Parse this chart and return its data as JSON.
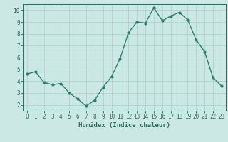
{
  "x": [
    0,
    1,
    2,
    3,
    4,
    5,
    6,
    7,
    8,
    9,
    10,
    11,
    12,
    13,
    14,
    15,
    16,
    17,
    18,
    19,
    20,
    21,
    22,
    23
  ],
  "y": [
    4.6,
    4.8,
    3.9,
    3.7,
    3.8,
    3.0,
    2.5,
    1.9,
    2.4,
    3.5,
    4.4,
    5.9,
    8.1,
    9.0,
    8.9,
    10.2,
    9.1,
    9.5,
    9.8,
    9.2,
    7.5,
    6.5,
    4.3,
    3.6
  ],
  "line_color": "#2e7d6e",
  "marker": "o",
  "markersize": 2,
  "linewidth": 1.0,
  "bg_color": "#cce8e4",
  "grid_color": "#aed4cf",
  "xlabel": "Humidex (Indice chaleur)",
  "xlim": [
    -0.5,
    23.5
  ],
  "ylim": [
    1.5,
    10.5
  ],
  "yticks": [
    2,
    3,
    4,
    5,
    6,
    7,
    8,
    9,
    10
  ],
  "xticks": [
    0,
    1,
    2,
    3,
    4,
    5,
    6,
    7,
    8,
    9,
    10,
    11,
    12,
    13,
    14,
    15,
    16,
    17,
    18,
    19,
    20,
    21,
    22,
    23
  ],
  "tick_color": "#2e6b60",
  "label_fontsize": 6.5,
  "tick_fontsize": 5.5
}
